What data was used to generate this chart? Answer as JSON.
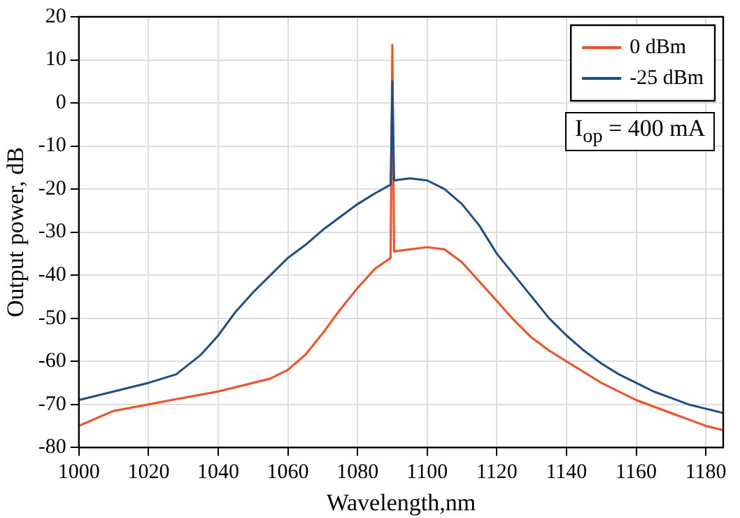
{
  "chart_data": {
    "type": "line",
    "xlabel": "Wavelength,nm",
    "ylabel": "Output power, dB",
    "xlim": [
      1000,
      1185
    ],
    "xticks": [
      1000,
      1020,
      1040,
      1060,
      1080,
      1100,
      1120,
      1140,
      1160,
      1180
    ],
    "ylim": [
      -80,
      20
    ],
    "yticks": [
      -80,
      -70,
      -60,
      -50,
      -40,
      -30,
      -20,
      -10,
      0,
      10,
      20
    ],
    "grid": true,
    "legend": "top right",
    "marker": "none",
    "line_style": "solid",
    "annotations": [
      "I$_{op}$ = 400 mA"
    ],
    "series": [
      {
        "name": "0 dBm",
        "color": "#ff4a1c",
        "x": [
          1000,
          1010,
          1020,
          1030,
          1040,
          1050,
          1055,
          1060,
          1065,
          1070,
          1075,
          1080,
          1085,
          1089.5,
          1090,
          1090.5,
          1095,
          1100,
          1105,
          1110,
          1115,
          1120,
          1125,
          1130,
          1135,
          1140,
          1145,
          1150,
          1155,
          1160,
          1165,
          1170,
          1175,
          1180,
          1185
        ],
        "values": [
          -75,
          -71.5,
          -70,
          -68.5,
          -67,
          -65,
          -64,
          -62,
          -58.5,
          -53.5,
          -48,
          -43,
          -38.5,
          -36,
          13.5,
          -34.5,
          -34,
          -33.5,
          -34,
          -37,
          -41.5,
          -46,
          -50.5,
          -54.5,
          -57.5,
          -60,
          -62.5,
          -65,
          -67,
          -69,
          -70.5,
          -72,
          -73.5,
          -75,
          -76
        ]
      },
      {
        "name": "-25 dBm",
        "color": "#1a4f8c",
        "x": [
          1000,
          1010,
          1020,
          1028,
          1035,
          1040,
          1045,
          1050,
          1055,
          1060,
          1065,
          1070,
          1075,
          1080,
          1085,
          1089.5,
          1090,
          1090.5,
          1095,
          1100,
          1105,
          1110,
          1115,
          1120,
          1125,
          1130,
          1135,
          1140,
          1145,
          1150,
          1155,
          1160,
          1165,
          1170,
          1175,
          1180,
          1185
        ],
        "values": [
          -69,
          -67,
          -65,
          -63,
          -58.5,
          -54,
          -48.5,
          -44,
          -40,
          -36,
          -33,
          -29.5,
          -26.5,
          -23.5,
          -21,
          -19,
          5,
          -18,
          -17.5,
          -18,
          -20,
          -23.5,
          -28.5,
          -35,
          -40,
          -45,
          -50,
          -54,
          -57.5,
          -60.5,
          -63,
          -65,
          -67,
          -68.5,
          -70,
          -71,
          -72
        ]
      }
    ]
  }
}
